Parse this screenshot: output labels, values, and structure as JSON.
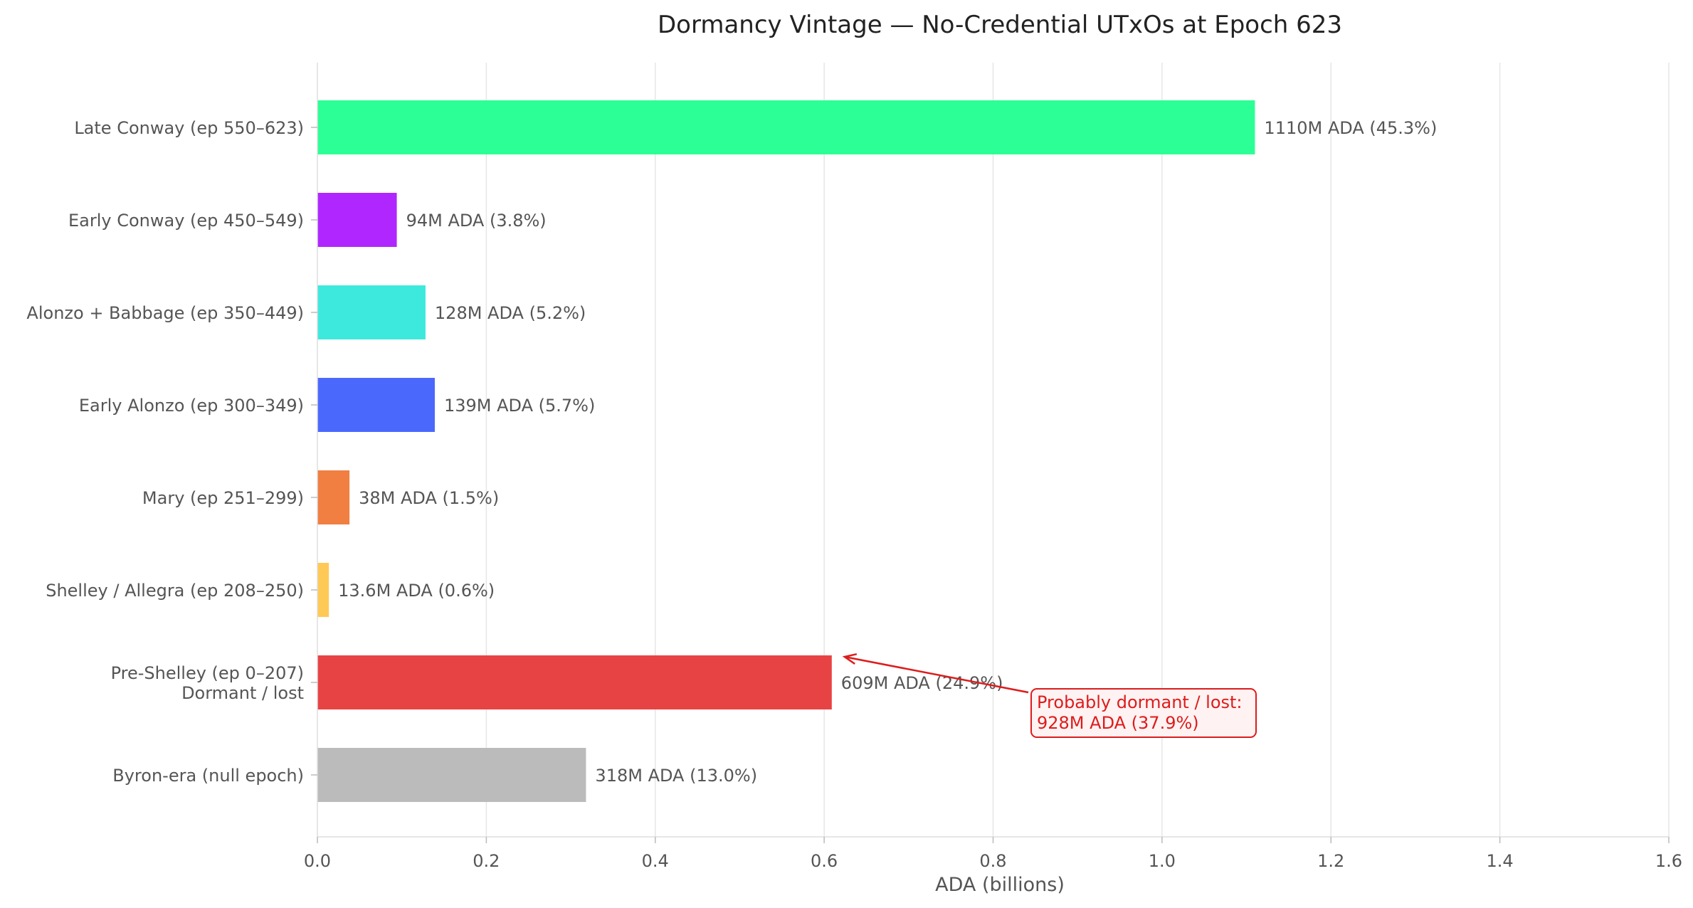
{
  "chart_data": {
    "type": "bar",
    "orientation": "horizontal",
    "title": "Dormancy Vintage — No-Credential UTxOs at Epoch 623",
    "xlabel": "ADA (billions)",
    "ylabel": "",
    "xlim": [
      0,
      1.6
    ],
    "xticks": [
      "0.0",
      "0.2",
      "0.4",
      "0.6",
      "0.8",
      "1.0",
      "1.2",
      "1.4",
      "1.6"
    ],
    "grid": "vertical",
    "categories": [
      [
        "Late Conway (ep 550–623)"
      ],
      [
        "Early Conway (ep 450–549)"
      ],
      [
        "Alonzo + Babbage (ep 350–449)"
      ],
      [
        "Early Alonzo (ep 300–349)"
      ],
      [
        "Mary (ep 251–299)"
      ],
      [
        "Shelley / Allegra (ep 208–250)"
      ],
      [
        "Pre-Shelley (ep 0–207)",
        "Dormant / lost"
      ],
      [
        "Byron-era (null epoch)"
      ]
    ],
    "values": [
      1.11,
      0.094,
      0.128,
      0.139,
      0.038,
      0.0136,
      0.609,
      0.318
    ],
    "value_labels": [
      "1110M ADA (45.3%)",
      "94M ADA (3.8%)",
      "128M ADA (5.2%)",
      "139M ADA (5.7%)",
      "38M ADA (1.5%)",
      "13.6M ADA (0.6%)",
      "609M ADA (24.9%)",
      "318M ADA (13.0%)"
    ],
    "colors": [
      "#2bff95",
      "#b026ff",
      "#3de9dd",
      "#4b68fc",
      "#f07f41",
      "#ffc956",
      "#e84344",
      "#bbbbbb"
    ],
    "annotation": {
      "lines": [
        "Probably dormant / lost:",
        "928M ADA (37.9%)"
      ],
      "points_to_category_index": 6,
      "text_color": "#dd1c1c",
      "box_fill": "#fff2f2",
      "box_edge": "#dd1c1c"
    }
  }
}
